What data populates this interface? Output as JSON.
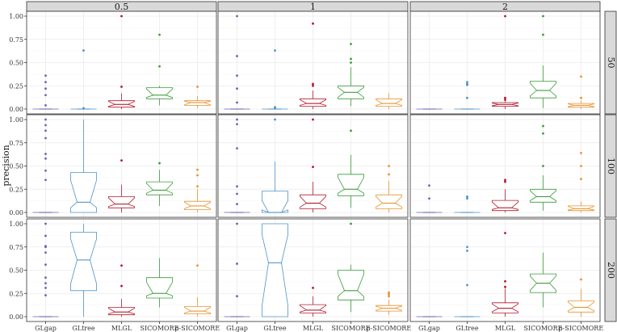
{
  "chart_data": {
    "type": "box",
    "ylabel": "precision",
    "xlabel": "",
    "categories": [
      "GLgap",
      "GLtree",
      "MLGL",
      "SICOMORE",
      "ρ-SICOMORE"
    ],
    "colors": [
      "#6b63b5",
      "#4f93c8",
      "#b2182b",
      "#3a9c3a",
      "#e8922b"
    ],
    "col_facets": [
      "0.5",
      "1",
      "2"
    ],
    "row_facets": [
      "50",
      "100",
      "200"
    ],
    "y_ticks": [
      "0.00",
      "0.25",
      "0.50",
      "0.75",
      "1.00"
    ],
    "ylim": [
      0,
      1
    ],
    "grid": true,
    "panels": [
      {
        "col": "0.5",
        "row": "50",
        "boxes": [
          {
            "q1": 0,
            "median": 0,
            "q3": 0,
            "lo": 0,
            "hi": 0,
            "outliers": [
              0.36,
              0.29,
              0.22,
              0.15,
              0.04
            ]
          },
          {
            "q1": 0,
            "median": 0,
            "q3": 0,
            "lo": 0,
            "hi": 0,
            "outliers": [
              0.63,
              0.01
            ]
          },
          {
            "q1": 0.02,
            "median": 0.05,
            "q3": 0.09,
            "lo": 0,
            "hi": 0.17,
            "outliers": [
              1.0,
              0.24
            ]
          },
          {
            "q1": 0.11,
            "median": 0.15,
            "q3": 0.23,
            "lo": 0.04,
            "hi": 0.25,
            "outliers": [
              0.8,
              0.46
            ]
          },
          {
            "q1": 0.04,
            "median": 0.07,
            "q3": 0.09,
            "lo": 0.01,
            "hi": 0.14,
            "outliers": [
              0.24
            ]
          }
        ]
      },
      {
        "col": "1",
        "row": "50",
        "boxes": [
          {
            "q1": 0,
            "median": 0,
            "q3": 0,
            "lo": 0,
            "hi": 0,
            "outliers": [
              1.0,
              0.57,
              0.36,
              0.22,
              0.07
            ]
          },
          {
            "q1": 0,
            "median": 0,
            "q3": 0,
            "lo": 0,
            "hi": 0,
            "outliers": [
              0.63,
              0.02,
              0.01
            ]
          },
          {
            "q1": 0.03,
            "median": 0.06,
            "q3": 0.11,
            "lo": 0,
            "hi": 0.2,
            "outliers": [
              0.92,
              0.27,
              0.25
            ]
          },
          {
            "q1": 0.11,
            "median": 0.18,
            "q3": 0.25,
            "lo": 0.03,
            "hi": 0.45,
            "outliers": [
              0.7,
              0.54,
              0.5
            ]
          },
          {
            "q1": 0.03,
            "median": 0.06,
            "q3": 0.11,
            "lo": 0,
            "hi": 0.17,
            "outliers": []
          }
        ]
      },
      {
        "col": "2",
        "row": "50",
        "boxes": [
          {
            "q1": 0,
            "median": 0,
            "q3": 0,
            "lo": 0,
            "hi": 0,
            "outliers": []
          },
          {
            "q1": 0,
            "median": 0,
            "q3": 0,
            "lo": 0,
            "hi": 0,
            "outliers": [
              0.29,
              0.27,
              0.26,
              0.12
            ]
          },
          {
            "q1": 0.03,
            "median": 0.05,
            "q3": 0.07,
            "lo": 0,
            "hi": 0.09,
            "outliers": [
              1.0,
              0.12,
              0.1
            ]
          },
          {
            "q1": 0.12,
            "median": 0.2,
            "q3": 0.3,
            "lo": 0.01,
            "hi": 0.47,
            "outliers": [
              1.0,
              0.8
            ]
          },
          {
            "q1": 0.02,
            "median": 0.04,
            "q3": 0.06,
            "lo": 0,
            "hi": 0.09,
            "outliers": [
              0.35,
              0.12
            ]
          }
        ]
      },
      {
        "col": "0.5",
        "row": "100",
        "boxes": [
          {
            "q1": 0,
            "median": 0,
            "q3": 0,
            "lo": 0,
            "hi": 0,
            "outliers": [
              1.0,
              0.94,
              0.88,
              0.8,
              0.63,
              0.58,
              0.45,
              0.35
            ]
          },
          {
            "q1": 0,
            "median": 0.11,
            "q3": 0.43,
            "lo": 0,
            "hi": 1.0,
            "outliers": []
          },
          {
            "q1": 0.05,
            "median": 0.09,
            "q3": 0.17,
            "lo": 0,
            "hi": 0.3,
            "outliers": [
              0.56
            ]
          },
          {
            "q1": 0.19,
            "median": 0.24,
            "q3": 0.33,
            "lo": 0.07,
            "hi": 0.46,
            "outliers": [
              0.53
            ]
          },
          {
            "q1": 0.03,
            "median": 0.07,
            "q3": 0.12,
            "lo": 0,
            "hi": 0.25,
            "outliers": [
              0.46,
              0.4,
              0.28
            ]
          }
        ]
      },
      {
        "col": "1",
        "row": "100",
        "boxes": [
          {
            "q1": 0,
            "median": 0,
            "q3": 0,
            "lo": 0,
            "hi": 0,
            "outliers": [
              1.0,
              0.95,
              0.69,
              0.28,
              0.2,
              0.09
            ]
          },
          {
            "q1": 0,
            "median": 0,
            "q3": 0.23,
            "lo": 0,
            "hi": 0.55,
            "outliers": [
              1.0
            ]
          },
          {
            "q1": 0.04,
            "median": 0.1,
            "q3": 0.19,
            "lo": 0,
            "hi": 0.33,
            "outliers": [
              1.0,
              0.49
            ]
          },
          {
            "q1": 0.18,
            "median": 0.25,
            "q3": 0.41,
            "lo": 0.05,
            "hi": 0.62,
            "outliers": [
              0.88
            ]
          },
          {
            "q1": 0.04,
            "median": 0.1,
            "q3": 0.19,
            "lo": 0,
            "hi": 0.34,
            "outliers": [
              0.5,
              0.41
            ]
          }
        ]
      },
      {
        "col": "2",
        "row": "100",
        "boxes": [
          {
            "q1": 0,
            "median": 0,
            "q3": 0,
            "lo": 0,
            "hi": 0,
            "outliers": [
              0.29,
              0.15
            ]
          },
          {
            "q1": 0,
            "median": 0,
            "q3": 0,
            "lo": 0,
            "hi": 0,
            "outliers": [
              0.17,
              0.15
            ]
          },
          {
            "q1": 0.02,
            "median": 0.05,
            "q3": 0.13,
            "lo": 0,
            "hi": 0.25,
            "outliers": [
              0.35,
              0.33
            ]
          },
          {
            "q1": 0.11,
            "median": 0.17,
            "q3": 0.25,
            "lo": 0.02,
            "hi": 0.4,
            "outliers": [
              0.93,
              0.85,
              0.5
            ]
          },
          {
            "q1": 0.02,
            "median": 0.04,
            "q3": 0.07,
            "lo": 0,
            "hi": 0.12,
            "outliers": [
              0.64,
              0.5,
              0.36
            ]
          }
        ]
      },
      {
        "col": "0.5",
        "row": "200",
        "boxes": [
          {
            "q1": 0,
            "median": 0,
            "q3": 0,
            "lo": 0,
            "hi": 0,
            "outliers": [
              1.0,
              0.87,
              0.76,
              0.75,
              0.69,
              0.56,
              0.42,
              0.36,
              0.31,
              0.23
            ]
          },
          {
            "q1": 0.28,
            "median": 0.61,
            "q3": 0.91,
            "lo": 0,
            "hi": 1.0,
            "outliers": []
          },
          {
            "q1": 0.02,
            "median": 0.05,
            "q3": 0.1,
            "lo": 0,
            "hi": 0.19,
            "outliers": [
              0.55,
              0.33
            ]
          },
          {
            "q1": 0.2,
            "median": 0.25,
            "q3": 0.42,
            "lo": 0.1,
            "hi": 0.63,
            "outliers": []
          },
          {
            "q1": 0.03,
            "median": 0.06,
            "q3": 0.11,
            "lo": 0,
            "hi": 0.21,
            "outliers": [
              0.55
            ]
          }
        ]
      },
      {
        "col": "1",
        "row": "200",
        "boxes": [
          {
            "q1": 0,
            "median": 0,
            "q3": 0,
            "lo": 0,
            "hi": 0,
            "outliers": [
              1.0,
              0.57,
              0.22
            ]
          },
          {
            "q1": 0,
            "median": 0.58,
            "q3": 1.0,
            "lo": 0,
            "hi": 1.0,
            "outliers": []
          },
          {
            "q1": 0.04,
            "median": 0.07,
            "q3": 0.13,
            "lo": 0,
            "hi": 0.22,
            "outliers": [
              0.31
            ]
          },
          {
            "q1": 0.18,
            "median": 0.28,
            "q3": 0.5,
            "lo": 0.05,
            "hi": 0.56,
            "outliers": [
              1.0
            ]
          },
          {
            "q1": 0.06,
            "median": 0.09,
            "q3": 0.12,
            "lo": 0.02,
            "hi": 0.18,
            "outliers": [
              0.26,
              0.24,
              0.22
            ]
          }
        ]
      },
      {
        "col": "2",
        "row": "200",
        "boxes": [
          {
            "q1": 0,
            "median": 0,
            "q3": 0,
            "lo": 0,
            "hi": 0,
            "outliers": []
          },
          {
            "q1": 0,
            "median": 0,
            "q3": 0,
            "lo": 0,
            "hi": 0,
            "outliers": [
              0.75,
              0.71,
              0.34
            ]
          },
          {
            "q1": 0.04,
            "median": 0.09,
            "q3": 0.15,
            "lo": 0,
            "hi": 0.3,
            "outliers": [
              0.9,
              0.38,
              0.32
            ]
          },
          {
            "q1": 0.26,
            "median": 0.36,
            "q3": 0.46,
            "lo": 0.1,
            "hi": 0.69,
            "outliers": []
          },
          {
            "q1": 0.05,
            "median": 0.1,
            "q3": 0.17,
            "lo": 0,
            "hi": 0.3,
            "outliers": [
              0.4
            ]
          }
        ]
      }
    ]
  }
}
